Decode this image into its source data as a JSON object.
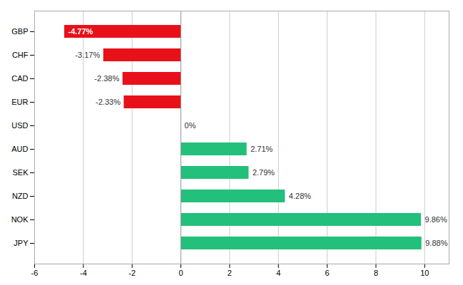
{
  "chart_data": {
    "type": "bar",
    "orientation": "horizontal",
    "categories": [
      "GBP",
      "CHF",
      "CAD",
      "EUR",
      "USD",
      "AUD",
      "SEK",
      "NZD",
      "NOK",
      "JPY"
    ],
    "values": [
      -4.77,
      -3.17,
      -2.38,
      -2.33,
      0.0,
      2.71,
      2.79,
      4.28,
      9.86,
      9.88
    ],
    "value_labels": [
      "-4.77%",
      "-3.17%",
      "-2.38%",
      "-2.33%",
      "0%",
      "2.71%",
      "2.79%",
      "4.28%",
      "9.86%",
      "9.88%"
    ],
    "data_labels": true,
    "colors": [
      "#e8111a",
      "#e8111a",
      "#e8111a",
      "#e8111a",
      "#ffffff",
      "#22c07a",
      "#22c07a",
      "#22c07a",
      "#22c07a",
      "#22c07a"
    ],
    "xlim": [
      -6,
      11
    ],
    "xticks": [
      -6,
      -4,
      -2,
      0,
      2,
      4,
      6,
      8,
      10
    ],
    "grid": true
  }
}
